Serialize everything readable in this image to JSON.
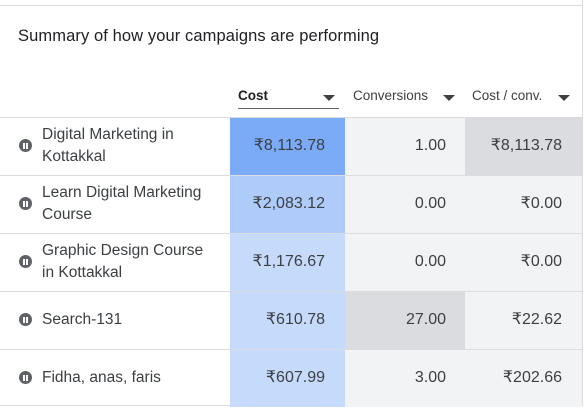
{
  "title": "Summary of how your campaigns are performing",
  "columns": {
    "cost": "Cost",
    "conversions": "Conversions",
    "cost_per_conv": "Cost / conv."
  },
  "heat_colors": {
    "cost_max": "#7baaf7",
    "cost_high": "#aecbfa",
    "cost_low": "#c6dafc",
    "neutral_max": "#dadce0",
    "neutral": "#f1f3f4",
    "plain": "#ffffff"
  },
  "rows": [
    {
      "name": "Digital Marketing in Kottakkal",
      "status": "paused",
      "cost": "₹8,113.78",
      "conversions": "1.00",
      "cost_per_conv": "₹8,113.78",
      "shade": {
        "cost": "cost_max",
        "conversions": "neutral",
        "cost_per_conv": "neutral_max"
      }
    },
    {
      "name": "Learn Digital Marketing Course",
      "status": "paused",
      "cost": "₹2,083.12",
      "conversions": "0.00",
      "cost_per_conv": "₹0.00",
      "shade": {
        "cost": "cost_high",
        "conversions": "neutral",
        "cost_per_conv": "neutral"
      }
    },
    {
      "name": "Graphic Design Course in Kottakkal",
      "status": "paused",
      "cost": "₹1,176.67",
      "conversions": "0.00",
      "cost_per_conv": "₹0.00",
      "shade": {
        "cost": "cost_low",
        "conversions": "neutral",
        "cost_per_conv": "neutral"
      }
    },
    {
      "name": "Search-131",
      "status": "paused",
      "cost": "₹610.78",
      "conversions": "27.00",
      "cost_per_conv": "₹22.62",
      "shade": {
        "cost": "cost_low",
        "conversions": "neutral_max",
        "cost_per_conv": "neutral"
      }
    },
    {
      "name": "Fidha, anas, faris",
      "status": "paused",
      "cost": "₹607.99",
      "conversions": "3.00",
      "cost_per_conv": "₹202.66",
      "shade": {
        "cost": "cost_low",
        "conversions": "neutral",
        "cost_per_conv": "neutral"
      }
    }
  ]
}
